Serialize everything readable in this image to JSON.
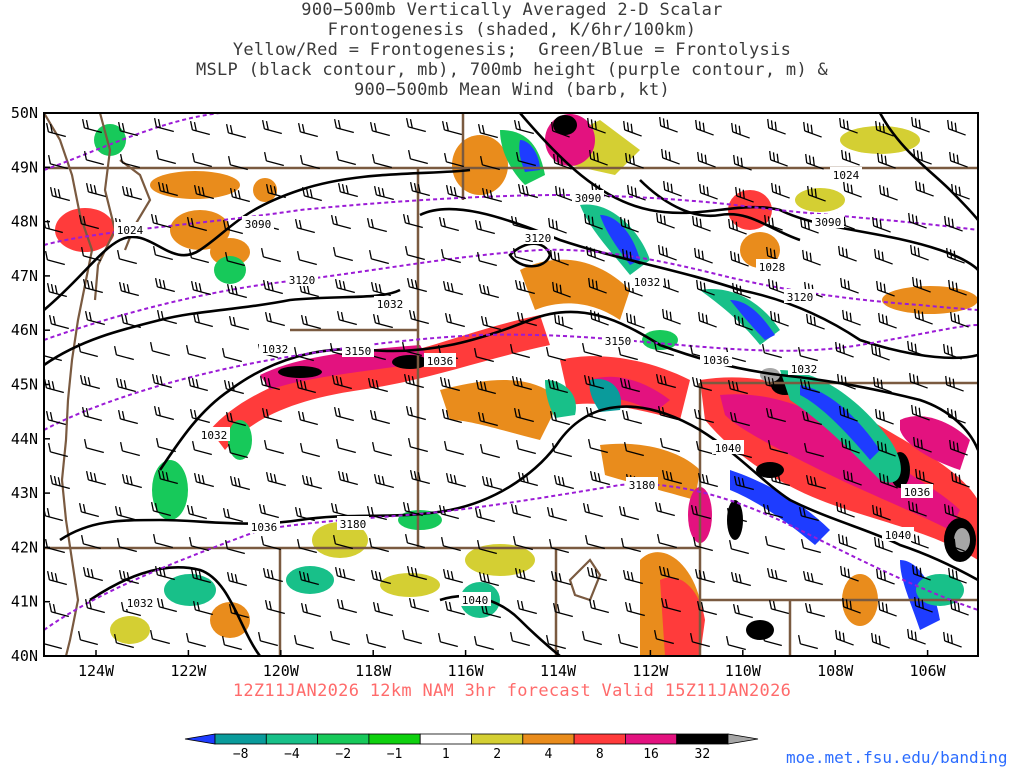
{
  "title_lines": [
    "900−500mb Vertically Averaged 2-D Scalar",
    "Frontogenesis (shaded, K/6hr/100km)",
    "Yellow/Red = Frontogenesis;  Green/Blue = Frontolysis",
    "MSLP (black contour, mb), 700mb height (purple contour, m) &",
    "900−500mb Mean Wind (barb, kt)"
  ],
  "footer": "12Z11JAN2026 12km NAM 3hr forecast Valid 15Z11JAN2026",
  "credit": "moe.met.fsu.edu/banding",
  "lat_labels": [
    "50N",
    "49N",
    "48N",
    "47N",
    "46N",
    "45N",
    "44N",
    "43N",
    "42N",
    "41N",
    "40N"
  ],
  "lon_labels": [
    "124W",
    "122W",
    "120W",
    "118W",
    "116W",
    "114W",
    "112W",
    "110W",
    "108W",
    "106W"
  ],
  "colorbar": {
    "labels": [
      "−8",
      "−4",
      "−2",
      "−1",
      "1",
      "2",
      "4",
      "8",
      "16",
      "32"
    ],
    "colors": [
      "#1e3cff",
      "#0a9b9b",
      "#18c089",
      "#17c95a",
      "#0fd10f",
      "#ffffff",
      "#d4cf33",
      "#e98c1c",
      "#ff3b3b",
      "#e3127f",
      "#000000",
      "#a6a6a6"
    ]
  },
  "mslp_labels": [
    "1024",
    "1032",
    "1032",
    "1032",
    "1036",
    "1036",
    "1028",
    "1032",
    "1040",
    "1036",
    "1040",
    "1040",
    "1032",
    "1036",
    "1032",
    "1024"
  ],
  "height_labels": [
    "3090",
    "3090",
    "3090",
    "3120",
    "3120",
    "3120",
    "3150",
    "3150",
    "3180",
    "3180"
  ]
}
